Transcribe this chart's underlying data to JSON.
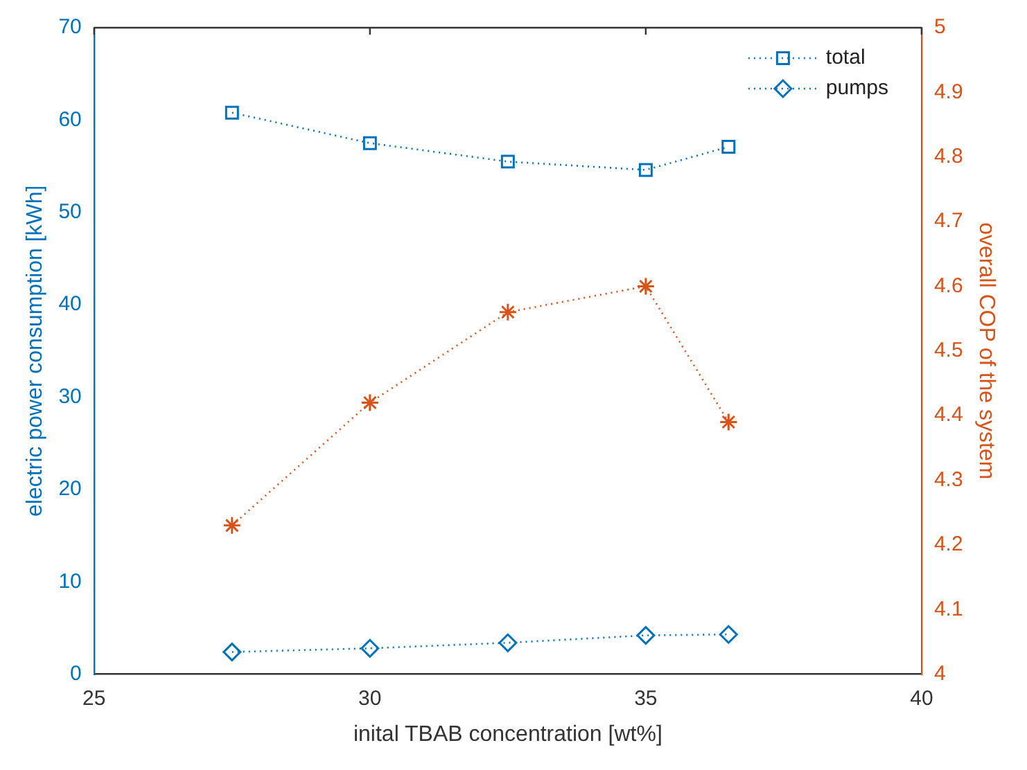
{
  "chart_data": {
    "type": "line",
    "xlabel": "inital TBAB concentration [wt%]",
    "ylabel": "electric power consumption [kWh]",
    "y2label": "overall COP of the system",
    "x": [
      27.5,
      30,
      32.5,
      35,
      36.5
    ],
    "series": [
      {
        "name": "total",
        "color": "#0072bd",
        "values": [
          60.8,
          57.5,
          55.5,
          54.6,
          57.1
        ],
        "marker": "square"
      },
      {
        "name": "pumps",
        "color": "#0072bd",
        "values": [
          2.4,
          2.8,
          3.4,
          4.2,
          4.3
        ],
        "marker": "diamond"
      },
      {
        "color": "#d95319",
        "values": [
          4.23,
          4.42,
          4.56,
          4.6,
          4.39
        ],
        "marker": "cross",
        "axis": "y2"
      }
    ],
    "xlim": [
      25,
      40
    ],
    "xticks": [
      25,
      30,
      35,
      40
    ],
    "ylim": [
      0,
      70
    ],
    "yticks": [
      0,
      10,
      20,
      30,
      40,
      50,
      60,
      70
    ],
    "y2lim": [
      4,
      5
    ],
    "y2ticks": [
      4,
      4.1,
      4.2,
      4.3,
      4.4,
      4.5,
      4.6,
      4.7,
      4.8,
      4.9,
      5
    ],
    "line_style": "dotted",
    "grid": false,
    "legend": "top right"
  }
}
